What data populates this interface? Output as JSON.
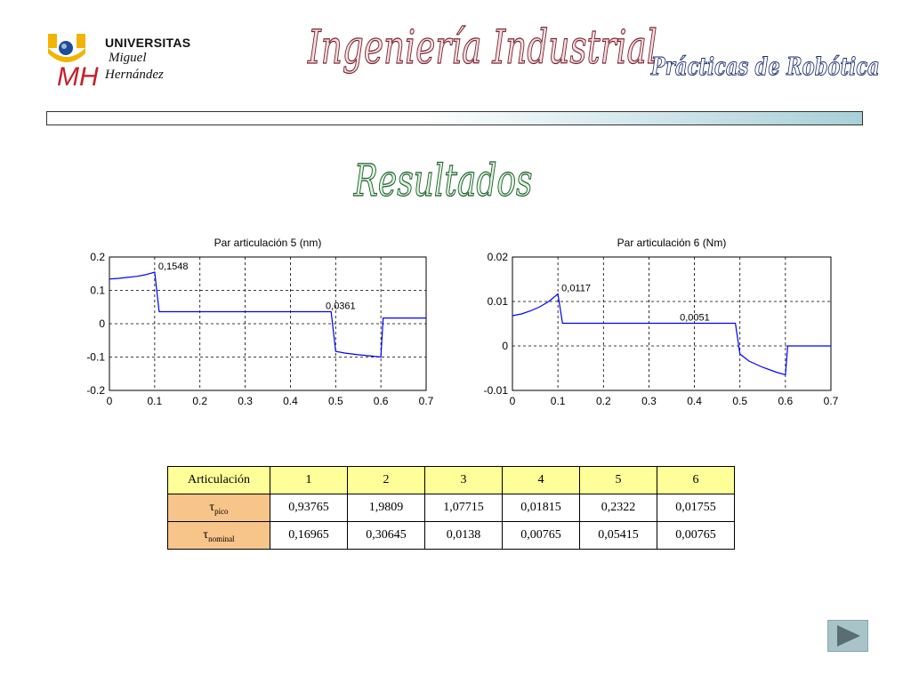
{
  "header": {
    "logo": {
      "line1": "UNIVERSITAS",
      "line2": "Miguel",
      "line3": "Hernández"
    },
    "title": "Ingeniería Industrial",
    "subtitle": "Prácticas de Robótica"
  },
  "section_title": "Resultados",
  "colors": {
    "series": "#0000ff",
    "title": "#7a2030",
    "subtitle": "#1b2a6c",
    "section": "#1e5a2a",
    "table_header": "#ffff99",
    "table_row_label": "#f7c48a"
  },
  "chart_data": [
    {
      "type": "line",
      "title": "Par articulación 5 (nm)",
      "xlabel": "",
      "ylabel": "",
      "xlim": [
        0,
        0.7
      ],
      "ylim": [
        -0.2,
        0.2
      ],
      "xticks": [
        "0",
        "0.1",
        "0.2",
        "0.3",
        "0.4",
        "0.5",
        "0.6",
        "0.7"
      ],
      "yticks": [
        "0.2",
        "0.1",
        "0",
        "-0.1",
        "-0.2"
      ],
      "grid": true,
      "series": [
        {
          "x": [
            0,
            0.02,
            0.04,
            0.06,
            0.08,
            0.1,
            0.11,
            0.2,
            0.3,
            0.4,
            0.49,
            0.5,
            0.52,
            0.55,
            0.58,
            0.6,
            0.605,
            0.7
          ],
          "y": [
            0.134,
            0.136,
            0.139,
            0.142,
            0.147,
            0.1548,
            0.0361,
            0.0361,
            0.0361,
            0.0361,
            0.0361,
            -0.083,
            -0.088,
            -0.093,
            -0.097,
            -0.1,
            0.017,
            0.017
          ]
        }
      ],
      "annotations": [
        {
          "text": "0,1548",
          "x": 0.1,
          "y": 0.1548
        },
        {
          "text": "0,0361",
          "x": 0.47,
          "y": 0.0361
        }
      ]
    },
    {
      "type": "line",
      "title": "Par articulación 6 (Nm)",
      "xlabel": "",
      "ylabel": "",
      "xlim": [
        0,
        0.7
      ],
      "ylim": [
        -0.01,
        0.02
      ],
      "xticks": [
        "0",
        "0.1",
        "0.2",
        "0.3",
        "0.4",
        "0.5",
        "0.6",
        "0.7"
      ],
      "yticks": [
        "0.02",
        "0.01",
        "0",
        "-0.01"
      ],
      "grid": true,
      "series": [
        {
          "x": [
            0,
            0.02,
            0.04,
            0.06,
            0.08,
            0.1,
            0.11,
            0.2,
            0.3,
            0.4,
            0.49,
            0.5,
            0.52,
            0.55,
            0.58,
            0.6,
            0.605,
            0.7
          ],
          "y": [
            0.0068,
            0.0072,
            0.0079,
            0.0088,
            0.01,
            0.0117,
            0.0051,
            0.0051,
            0.0051,
            0.0051,
            0.0051,
            -0.0018,
            -0.0034,
            -0.0048,
            -0.0059,
            -0.0065,
            0.0,
            0.0
          ]
        }
      ],
      "annotations": [
        {
          "text": "0,0117",
          "x": 0.1,
          "y": 0.0117
        },
        {
          "text": "0,0051",
          "x": 0.36,
          "y": 0.0051
        }
      ]
    }
  ],
  "table": {
    "header": [
      "Articulación",
      "1",
      "2",
      "3",
      "4",
      "5",
      "6"
    ],
    "rows": [
      {
        "symbol": "τ",
        "sub": "pico",
        "values": [
          "0,93765",
          "1,9809",
          "1,07715",
          "0,01815",
          "0,2322",
          "0,01755"
        ]
      },
      {
        "symbol": "τ",
        "sub": "nominal",
        "values": [
          "0,16965",
          "0,30645",
          "0,0138",
          "0,00765",
          "0,05415",
          "0,00765"
        ]
      }
    ]
  },
  "nav": {
    "next_icon": "play-triangle-icon"
  }
}
